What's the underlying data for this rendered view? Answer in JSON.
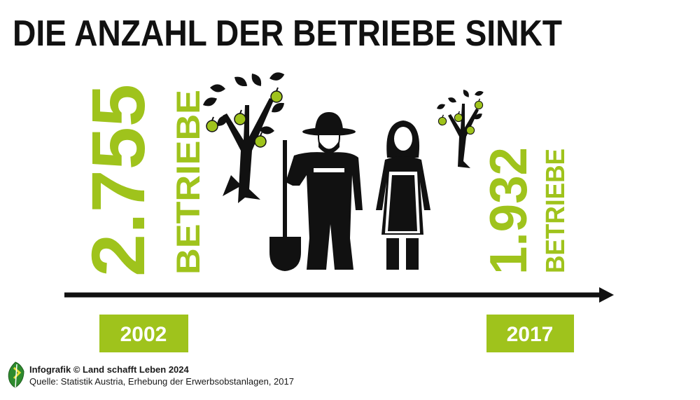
{
  "title": "DIE ANZAHL DER BETRIEBE SINKT",
  "start": {
    "value": "2.755",
    "unit": "BETRIEBE",
    "year": "2002"
  },
  "end": {
    "value": "1.932",
    "unit": "BETRIEBE",
    "year": "2017"
  },
  "footer": {
    "credit": "Infografik © Land schafft Leben 2024",
    "source": "Quelle: Statistik Austria, Erhebung der Erwerbsobstanlagen, 2017"
  },
  "colors": {
    "accent": "#9fc31c",
    "text": "#111111"
  },
  "icons": [
    "apple-tree-icon",
    "farmer-with-shovel-icon",
    "farmer-woman-icon",
    "small-apple-tree-icon",
    "leaf-logo-icon"
  ]
}
